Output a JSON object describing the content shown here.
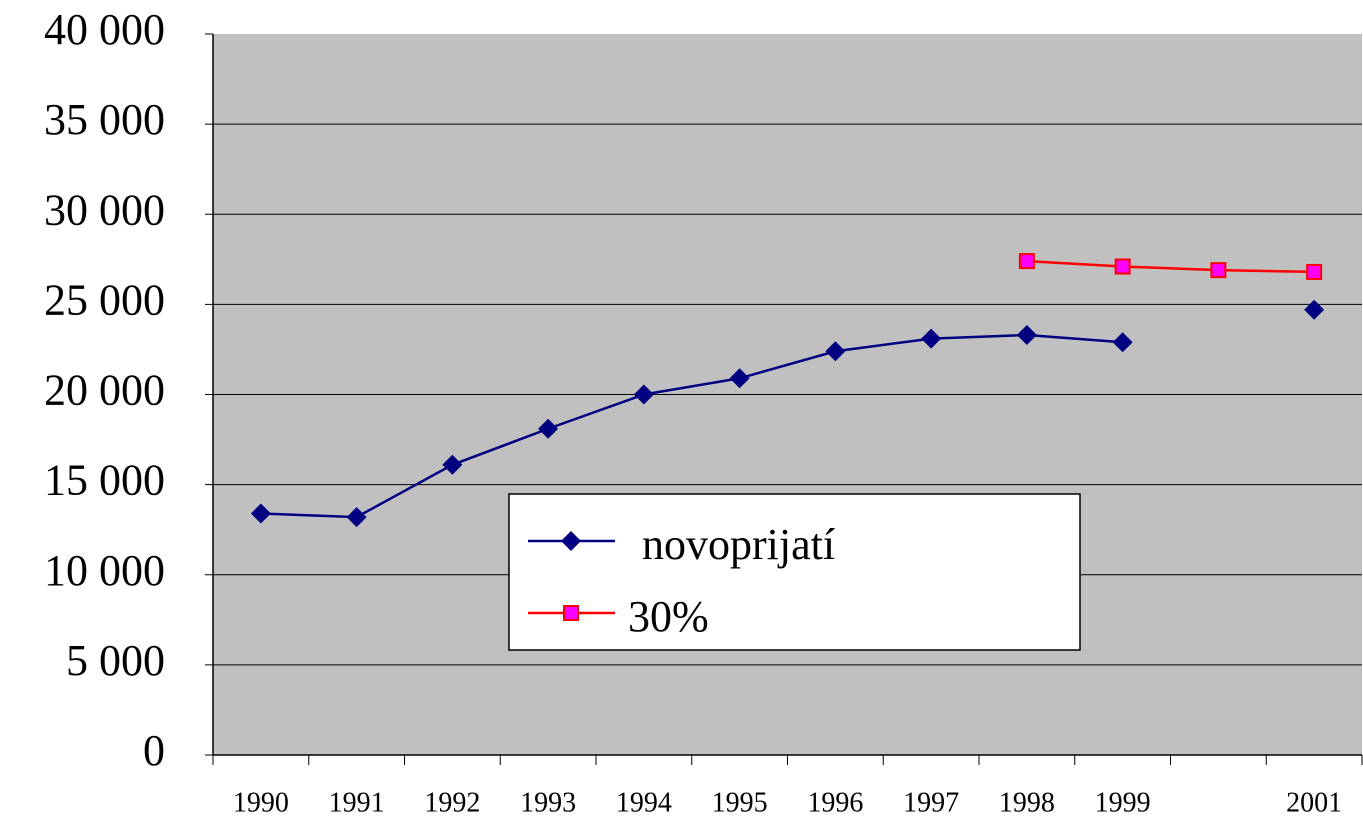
{
  "chart_data": {
    "type": "line",
    "categories": [
      "1990",
      "1991",
      "1992",
      "1993",
      "1994",
      "1995",
      "1996",
      "1997",
      "1998",
      "1999",
      null,
      "2001"
    ],
    "series": [
      {
        "name": "novoprijatí",
        "color": "#000080",
        "marker": "diamond",
        "values": [
          13400,
          13200,
          16100,
          18100,
          20000,
          20900,
          22400,
          23100,
          23300,
          22900,
          null,
          24700
        ]
      },
      {
        "name": "30%",
        "color": "#ff0000",
        "marker_fill": "#ff00ff",
        "marker": "square",
        "values": [
          null,
          null,
          null,
          null,
          null,
          null,
          null,
          null,
          27400,
          27100,
          26900,
          26800
        ]
      }
    ],
    "ylim": [
      0,
      40000
    ],
    "yticks": [
      0,
      {
        "value": 5000,
        "label": "5 000"
      },
      {
        "value": 10000,
        "label": "10 000"
      },
      {
        "value": 15000,
        "label": "15 000"
      },
      {
        "value": 20000,
        "label": "20 000"
      },
      {
        "value": 25000,
        "label": "25 000"
      },
      {
        "value": 30000,
        "label": "30 000"
      },
      {
        "value": 35000,
        "label": "35 000"
      },
      {
        "value": 40000,
        "label": "40 000"
      }
    ],
    "grid": true,
    "plot_background": "#c0c0c0"
  }
}
